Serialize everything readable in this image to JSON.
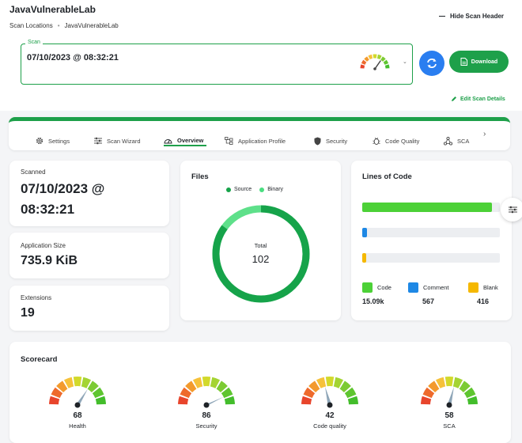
{
  "header": {
    "title": "JavaVulnerableLab",
    "breadcrumb": [
      "Scan Locations",
      "JavaVulnerableLab"
    ],
    "hide_header_label": "Hide Scan Header"
  },
  "scan": {
    "label": "Scan",
    "value": "07/10/2023 @ 08:32:21"
  },
  "actions": {
    "download_label": "Download",
    "edit_details_label": "Edit Scan Details"
  },
  "tabs": [
    {
      "label": "Settings",
      "icon": "gear-icon"
    },
    {
      "label": "Scan Wizard",
      "icon": "sliders-icon"
    },
    {
      "label": "Overview",
      "icon": "dashboard-icon",
      "active": true
    },
    {
      "label": "Application Profile",
      "icon": "hierarchy-icon"
    },
    {
      "label": "Security",
      "icon": "shield-icon"
    },
    {
      "label": "Code Quality",
      "icon": "bug-icon"
    },
    {
      "label": "SCA",
      "icon": "cluster-icon"
    }
  ],
  "summary": {
    "scanned_label": "Scanned",
    "scanned_value_line1": "07/10/2023 @",
    "scanned_value_line2": "08:32:21",
    "size_label": "Application Size",
    "size_value": "735.9 KiB",
    "extensions_label": "Extensions",
    "extensions_value": "19"
  },
  "files": {
    "title": "Files",
    "legend": [
      {
        "name": "Source",
        "color": "#16a34a"
      },
      {
        "name": "Binary",
        "color": "#4ade80"
      }
    ],
    "center_label": "Total",
    "total": "102",
    "source_fraction": 0.85
  },
  "lines_of_code": {
    "title": "Lines of Code",
    "items": [
      {
        "name": "Code",
        "value": "15.09k",
        "color": "#4cd137",
        "fraction": 0.94
      },
      {
        "name": "Comment",
        "value": "567",
        "color": "#1e88e5",
        "fraction": 0.035
      },
      {
        "name": "Blank",
        "value": "416",
        "color": "#f5b800",
        "fraction": 0.026
      }
    ]
  },
  "scorecard": {
    "title": "Scorecard",
    "items": [
      {
        "name": "Health",
        "score": "68"
      },
      {
        "name": "Security",
        "score": "86"
      },
      {
        "name": "Code quality",
        "score": "42"
      },
      {
        "name": "SCA",
        "score": "58"
      }
    ]
  }
}
